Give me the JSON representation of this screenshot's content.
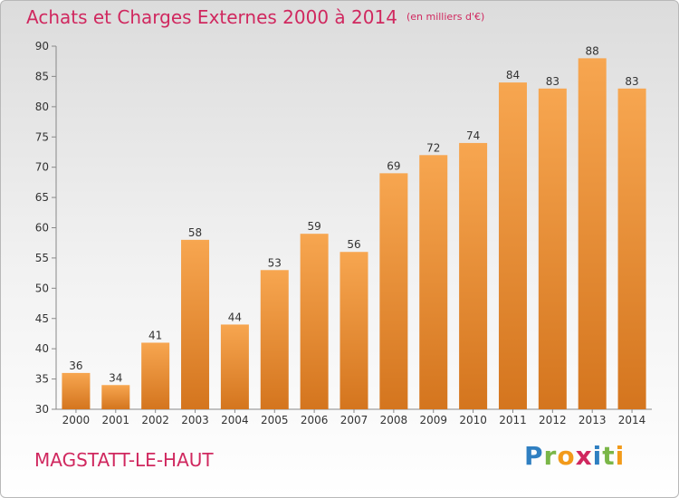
{
  "title": "Achats et Charges Externes 2000 à 2014",
  "title_unit": "(en milliers d'€)",
  "place": "MAGSTATT-LE-HAUT",
  "logo": "Proxiti",
  "colors": {
    "accent": "#d0285f",
    "bar_top": "#f7a650",
    "bar_bottom": "#d4751e"
  },
  "chart_data": {
    "type": "bar",
    "categories": [
      "2000",
      "2001",
      "2002",
      "2003",
      "2004",
      "2005",
      "2006",
      "2007",
      "2008",
      "2009",
      "2010",
      "2011",
      "2012",
      "2013",
      "2014"
    ],
    "values": [
      36,
      34,
      41,
      58,
      44,
      53,
      59,
      56,
      69,
      72,
      74,
      84,
      83,
      88,
      83
    ],
    "ylim": [
      30,
      90
    ],
    "yticks": [
      30,
      35,
      40,
      45,
      50,
      55,
      60,
      65,
      70,
      75,
      80,
      85,
      90
    ],
    "grid": false,
    "data_labels": true
  }
}
